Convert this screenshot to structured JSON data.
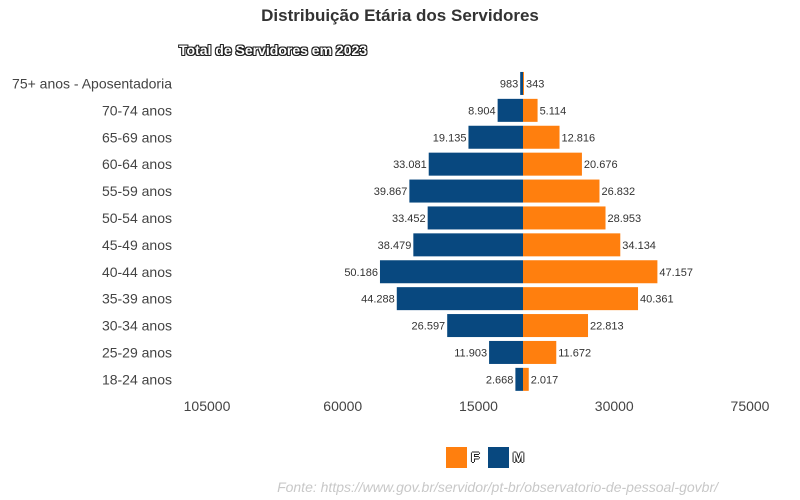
{
  "chart_data": {
    "type": "bar",
    "orientation": "horizontal-population-pyramid",
    "title": "Distribuição Etária dos Servidores",
    "subtitle": "Total de Servidores em 2023",
    "categories": [
      "75+ anos - Aposentadoria",
      "70-74 anos",
      "65-69 anos",
      "60-64 anos",
      "55-59 anos",
      "50-54 anos",
      "45-49 anos",
      "40-44 anos",
      "35-39 anos",
      "30-34 anos",
      "25-29 anos",
      "18-24 anos"
    ],
    "series": [
      {
        "name": "F",
        "color": "#ff7f0e",
        "values": [
          343,
          5114,
          12816,
          20676,
          26832,
          28953,
          34134,
          47157,
          40361,
          22813,
          11672,
          2017
        ],
        "labels": [
          "343",
          "5.114",
          "12.816",
          "20.676",
          "26.832",
          "28.953",
          "34.134",
          "47.157",
          "40.361",
          "22.813",
          "11.672",
          "2.017"
        ]
      },
      {
        "name": "M",
        "color": "#08487f",
        "values": [
          983,
          8904,
          19135,
          33081,
          39867,
          33452,
          38479,
          50186,
          44288,
          26597,
          11903,
          2668
        ],
        "labels": [
          "983",
          "8.904",
          "19.135",
          "33.081",
          "39.867",
          "33.452",
          "38.479",
          "50.186",
          "44.288",
          "26.597",
          "11.903",
          "2.668"
        ]
      }
    ],
    "x_ticks": [
      {
        "value": -105000,
        "label": "105000"
      },
      {
        "value": -60000,
        "label": "60000"
      },
      {
        "value": -15000,
        "label": "15000"
      },
      {
        "value": 30000,
        "label": "30000"
      },
      {
        "value": 75000,
        "label": "75000"
      }
    ],
    "xlim": [
      -105000,
      75000
    ],
    "legend_position": "bottom",
    "grid": false
  },
  "source_note": "Fonte: https://www.gov.br/servidor/pt-br/observatorio-de-pessoal-govbr/"
}
